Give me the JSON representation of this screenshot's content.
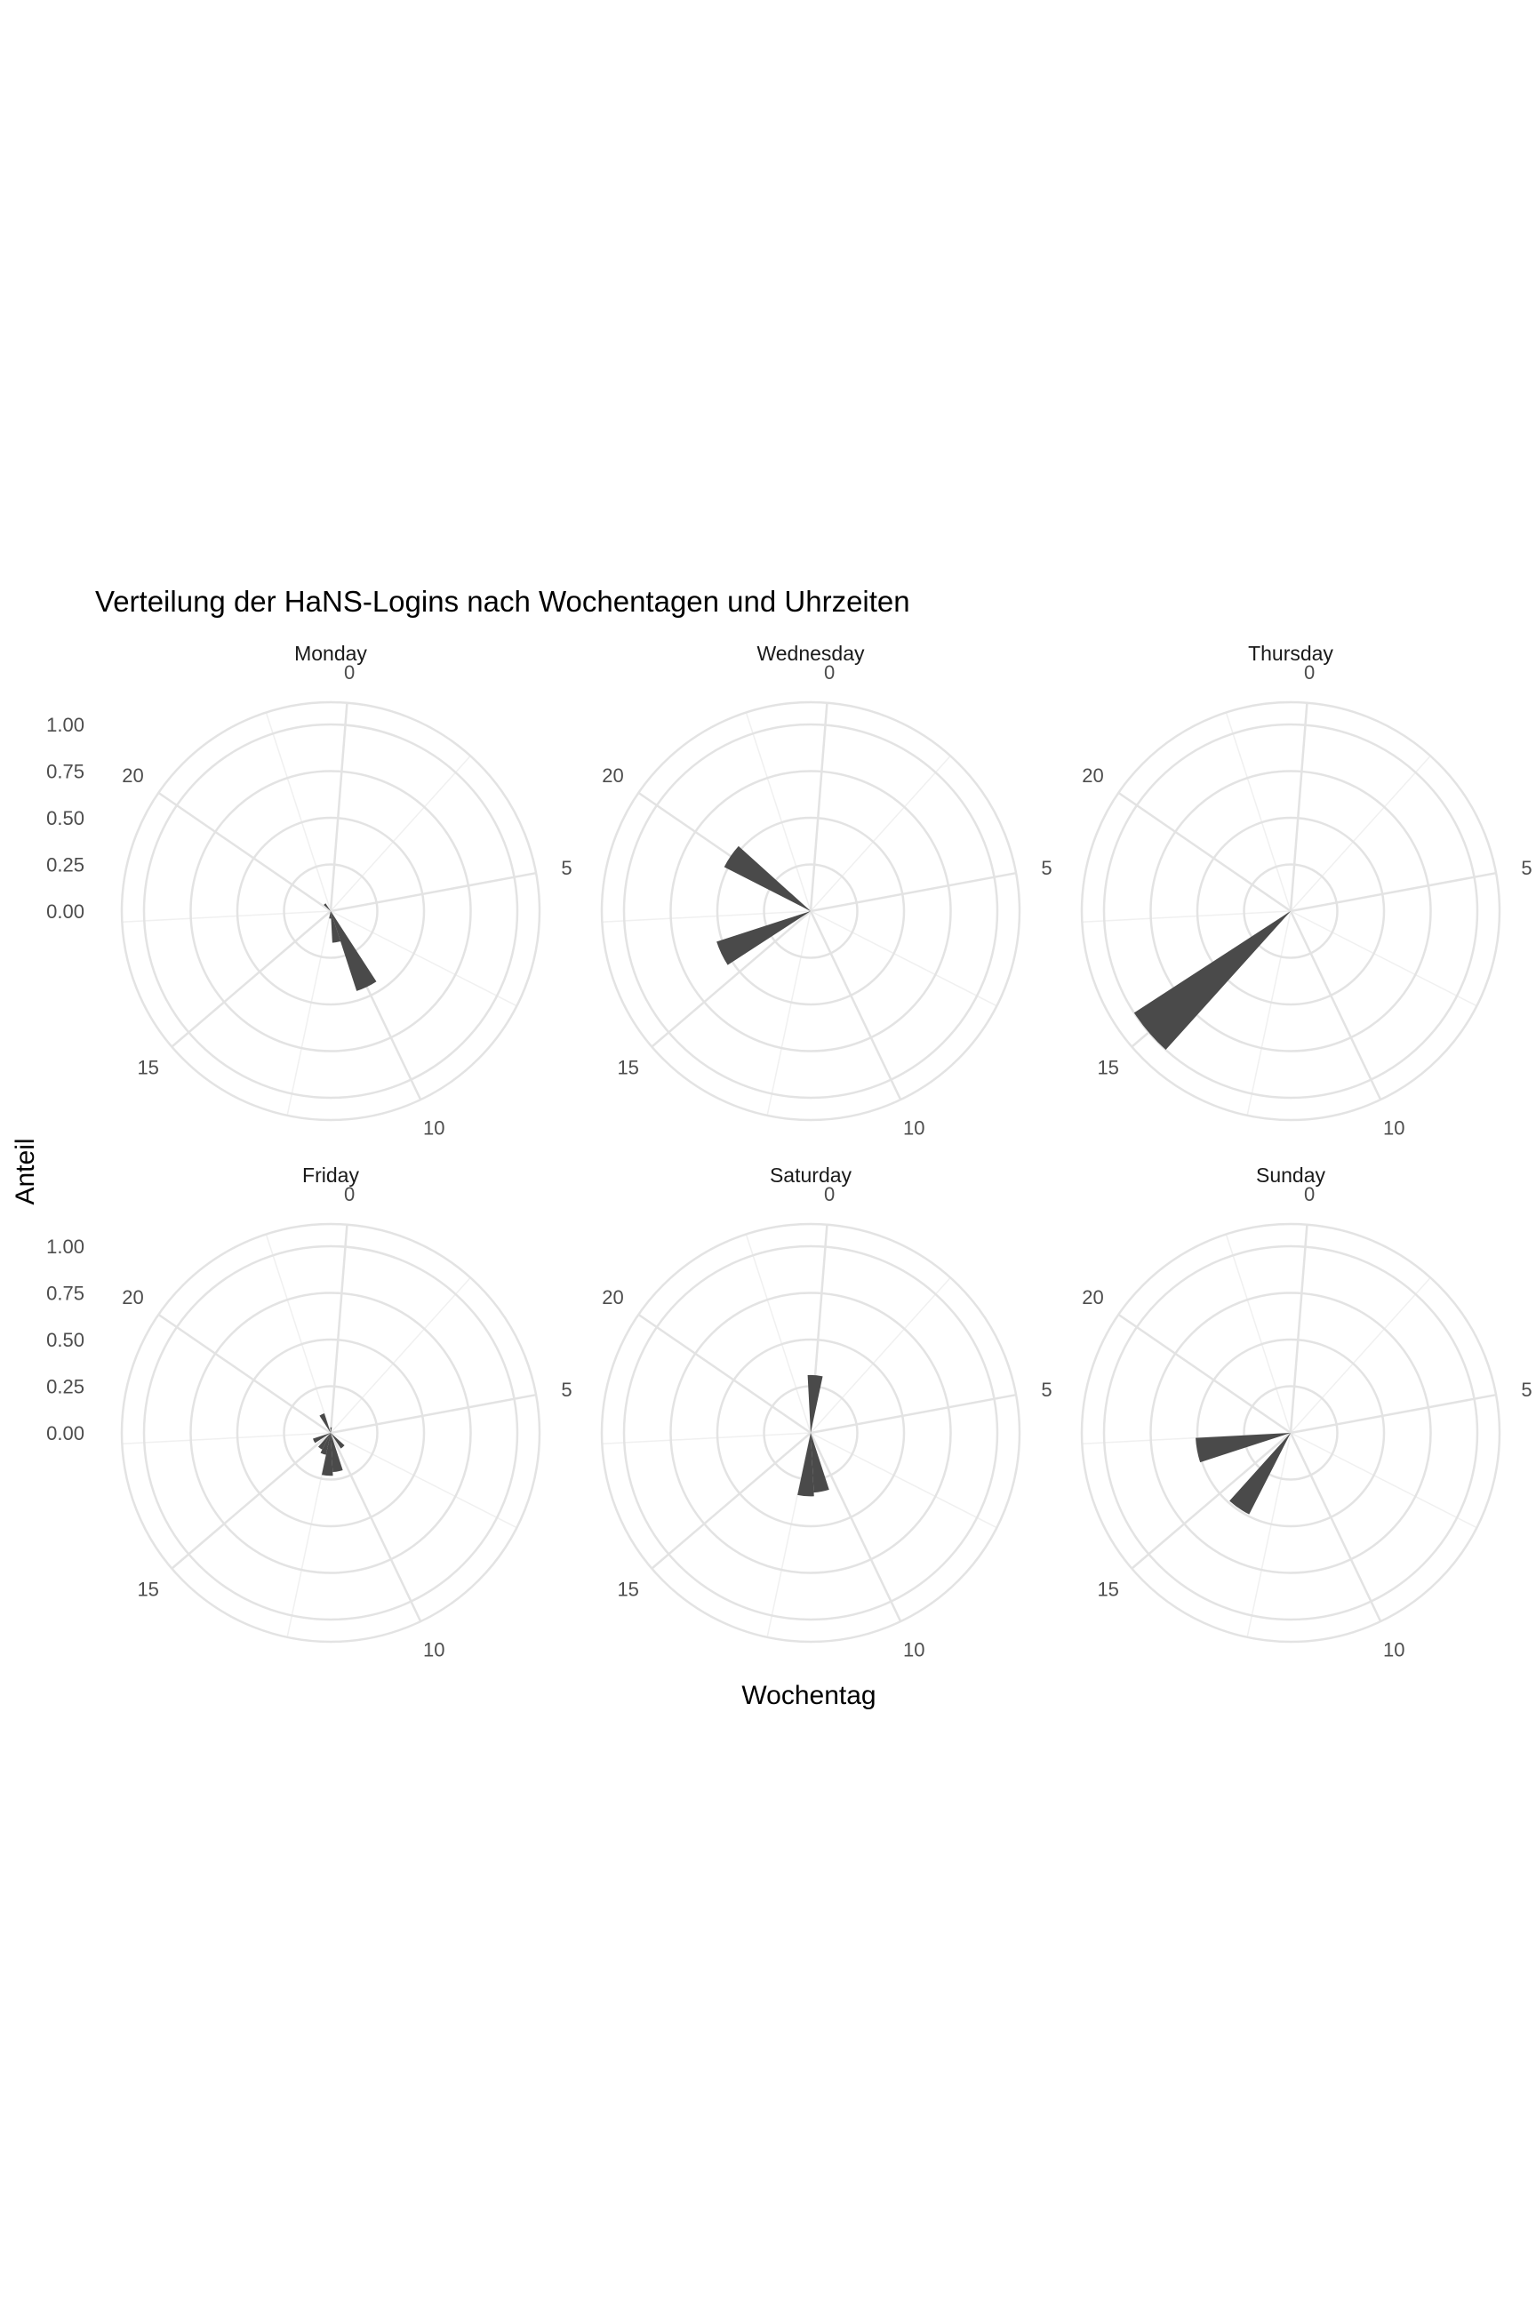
{
  "chart_data": {
    "type": "bar",
    "coord": "polar",
    "title": "Verteilung der HaNS-Logins nach Wochentagen und Uhrzeiten",
    "xlabel": "Wochentag",
    "ylabel": "Anteil",
    "x_breaks": [
      0,
      5,
      10,
      15,
      20
    ],
    "x_range": [
      0,
      24
    ],
    "y_breaks": [
      0.0,
      0.25,
      0.5,
      0.75,
      1.0
    ],
    "y_break_labels": [
      "0.00",
      "0.25",
      "0.50",
      "0.75",
      "1.00"
    ],
    "ylim": [
      0,
      1.0
    ],
    "grid": true,
    "facets": [
      {
        "name": "Monday",
        "bars": [
          {
            "hour": 10,
            "value": 0.45
          },
          {
            "hour": 11,
            "value": 0.17
          },
          {
            "hour": 12,
            "value": 0.04
          },
          {
            "hour": 21,
            "value": 0.05
          }
        ]
      },
      {
        "name": "Wednesday",
        "bars": [
          {
            "hour": 16,
            "value": 0.53
          },
          {
            "hour": 20,
            "value": 0.52
          }
        ]
      },
      {
        "name": "Thursday",
        "bars": [
          {
            "hour": 15,
            "value": 1.0
          }
        ]
      },
      {
        "name": "Friday",
        "bars": [
          {
            "hour": 0,
            "value": 0.03
          },
          {
            "hour": 9,
            "value": 0.1
          },
          {
            "hour": 11,
            "value": 0.21
          },
          {
            "hour": 12,
            "value": 0.23
          },
          {
            "hour": 13,
            "value": 0.12
          },
          {
            "hour": 14,
            "value": 0.1
          },
          {
            "hour": 16,
            "value": 0.1
          },
          {
            "hour": 22,
            "value": 0.11
          }
        ]
      },
      {
        "name": "Saturday",
        "bars": [
          {
            "hour": 11,
            "value": 0.32
          },
          {
            "hour": 12,
            "value": 0.34
          },
          {
            "hour": 24,
            "value": 0.31
          }
        ]
      },
      {
        "name": "Sunday",
        "bars": [
          {
            "hour": 14,
            "value": 0.49
          },
          {
            "hour": 17,
            "value": 0.51
          }
        ]
      }
    ]
  }
}
